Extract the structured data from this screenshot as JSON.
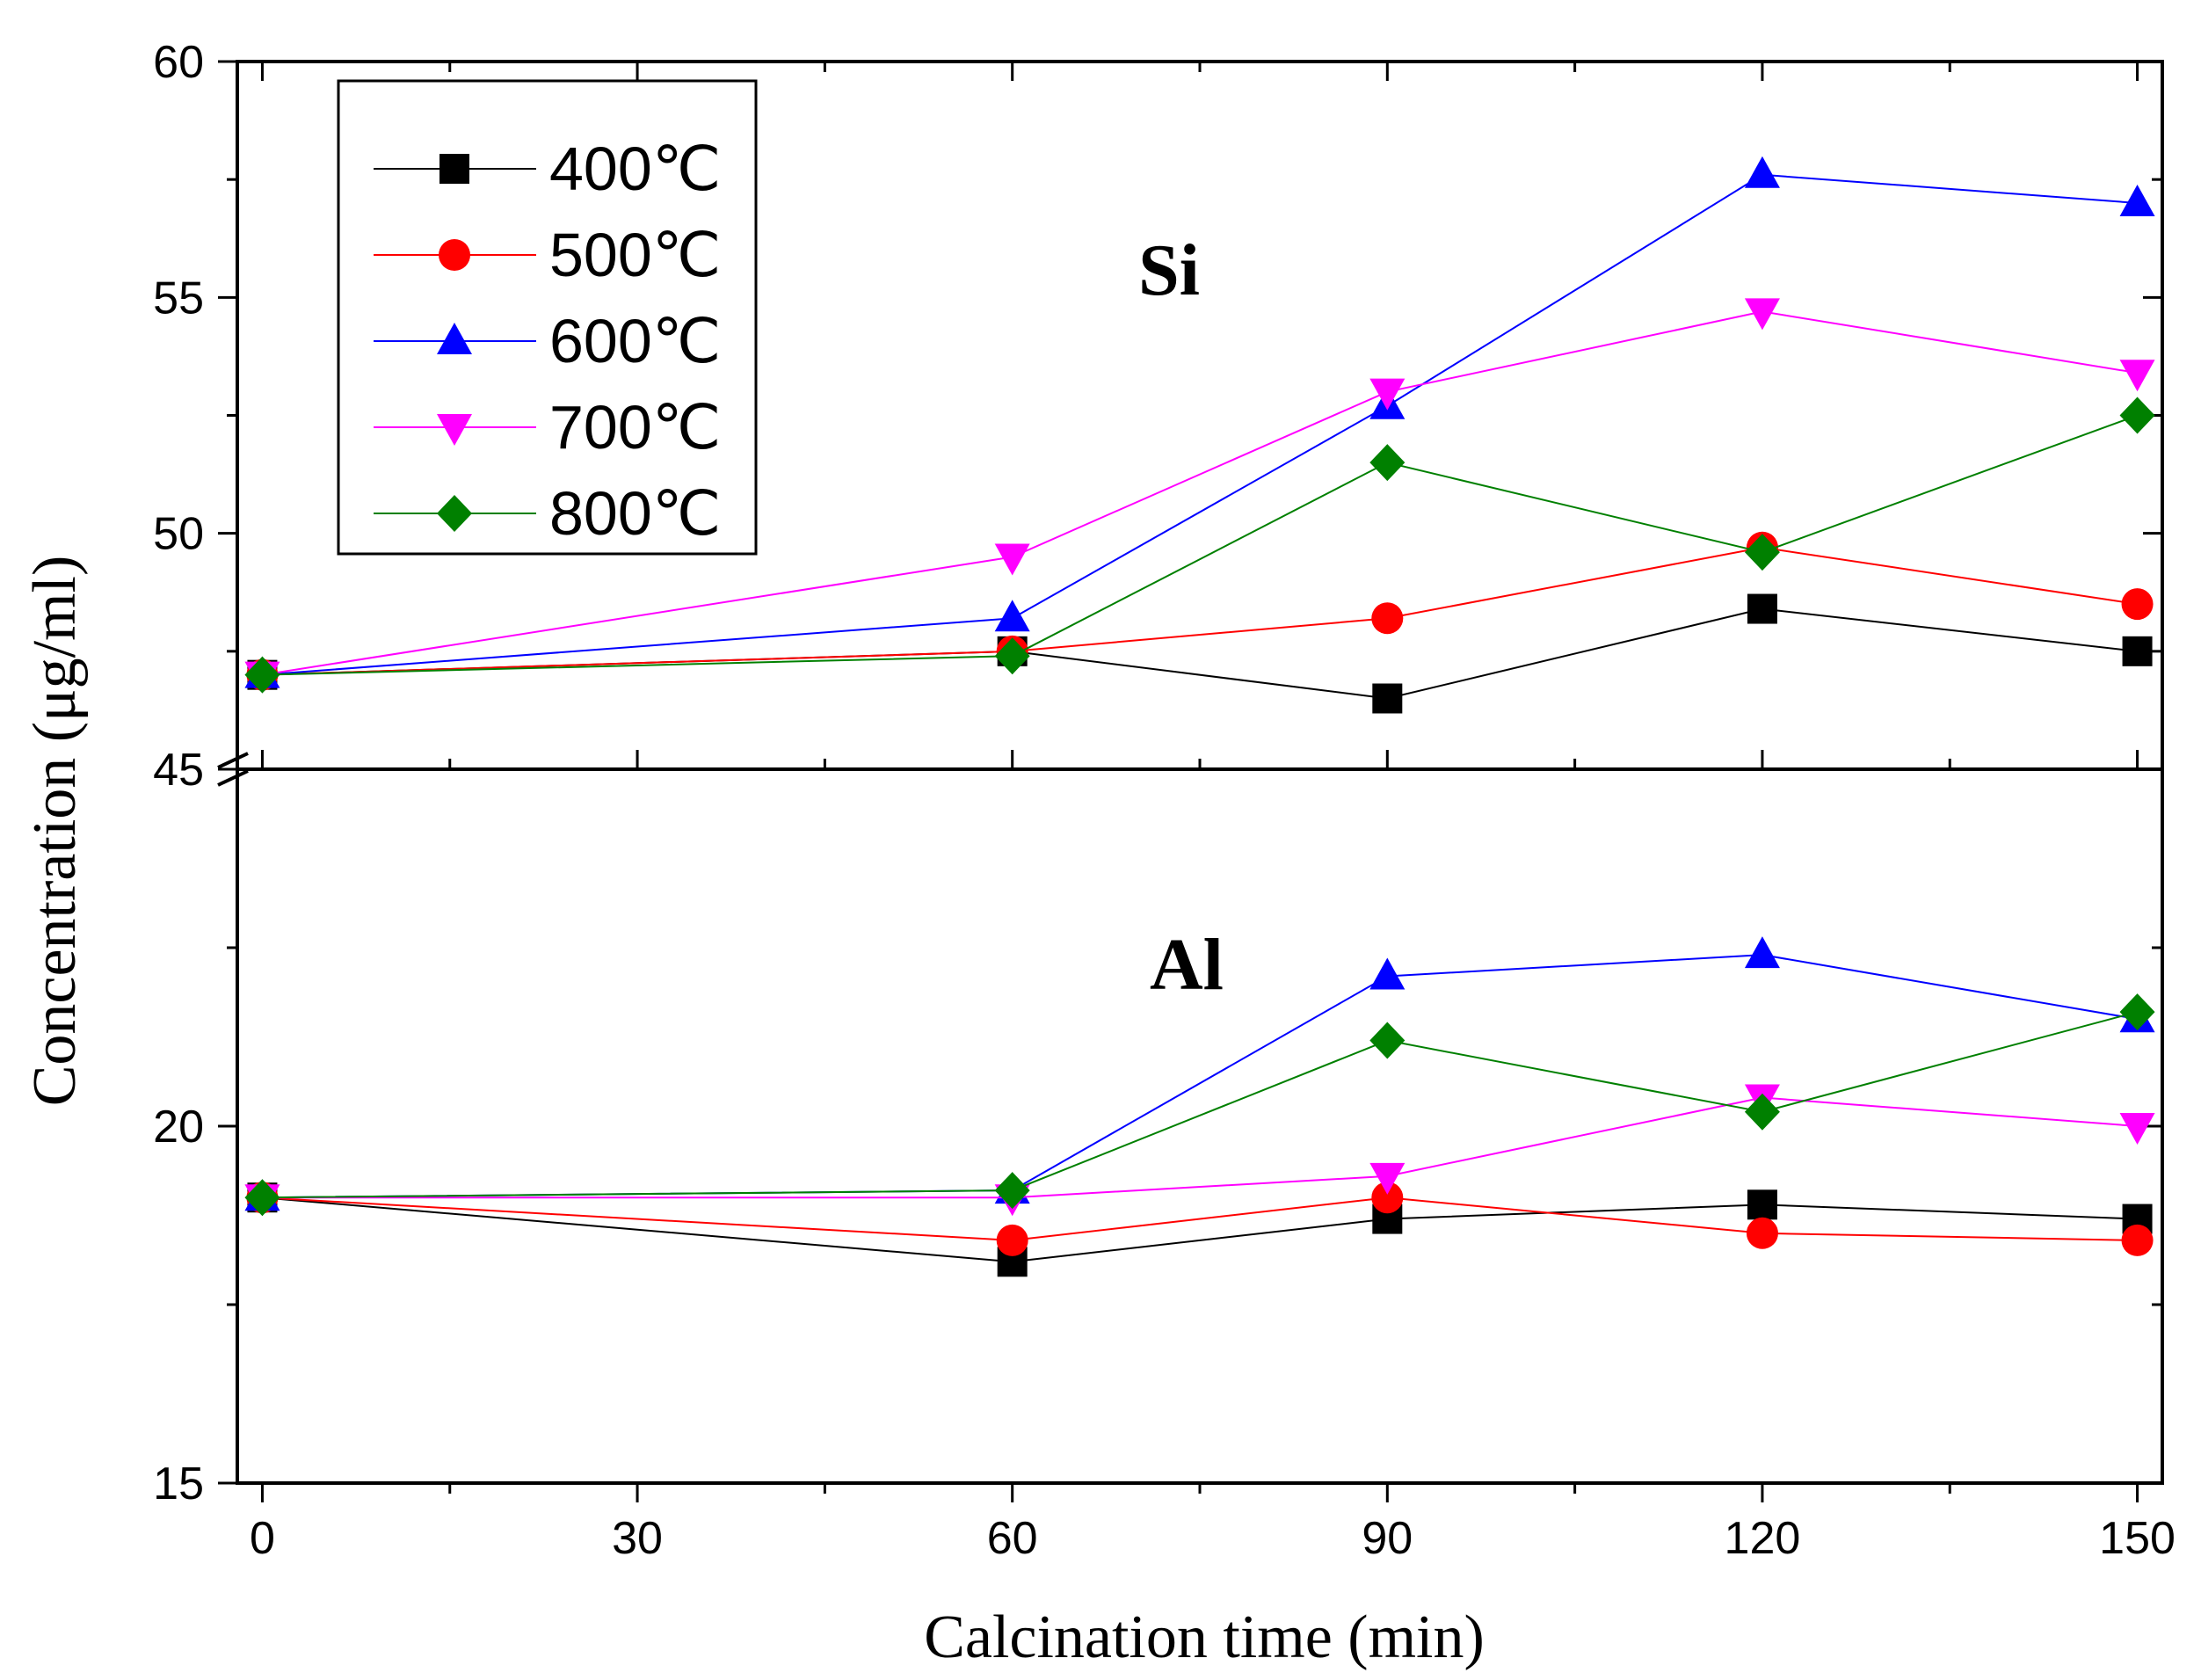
{
  "chart_data": {
    "type": "line",
    "xlabel": "Calcination time (min)",
    "ylabel": "Concentration (μg/ml)",
    "x": [
      0,
      60,
      90,
      120,
      150
    ],
    "xlim": [
      -2,
      152
    ],
    "xticks": [
      0,
      30,
      60,
      90,
      120,
      150
    ],
    "xticks_labeled": [
      "0",
      "30",
      "60",
      "90",
      "120",
      "150"
    ],
    "panels": [
      {
        "name": "upper",
        "label": "Si",
        "ylim": [
          45,
          60
        ],
        "yticks": [
          45,
          50,
          55,
          60
        ],
        "series": [
          {
            "name": "400℃",
            "values": [
              47.0,
              47.5,
              46.5,
              48.4,
              47.5
            ]
          },
          {
            "name": "500℃",
            "values": [
              47.0,
              47.5,
              48.2,
              49.7,
              48.5
            ]
          },
          {
            "name": "600℃",
            "values": [
              47.0,
              48.2,
              52.7,
              57.6,
              57.0
            ]
          },
          {
            "name": "700℃",
            "values": [
              47.0,
              49.5,
              53.0,
              54.7,
              53.4
            ]
          },
          {
            "name": "800℃",
            "values": [
              47.0,
              47.4,
              51.5,
              49.6,
              52.5
            ]
          }
        ]
      },
      {
        "name": "lower",
        "label": "Al",
        "ylim": [
          15,
          25
        ],
        "yticks": [
          15,
          20
        ],
        "series": [
          {
            "name": "400℃",
            "values": [
              19.0,
              18.1,
              18.7,
              18.9,
              18.7
            ]
          },
          {
            "name": "500℃",
            "values": [
              19.0,
              18.4,
              19.0,
              18.5,
              18.4
            ]
          },
          {
            "name": "600℃",
            "values": [
              19.0,
              19.1,
              22.1,
              22.4,
              21.5
            ]
          },
          {
            "name": "700℃",
            "values": [
              19.0,
              19.0,
              19.3,
              20.4,
              20.0
            ]
          },
          {
            "name": "800℃",
            "values": [
              19.0,
              19.1,
              21.2,
              20.2,
              21.6
            ]
          }
        ]
      }
    ],
    "legend": {
      "position": "top-left",
      "entries": [
        {
          "name": "400℃",
          "color": "#000000",
          "marker": "square"
        },
        {
          "name": "500℃",
          "color": "#ff0000",
          "marker": "circle"
        },
        {
          "name": "600℃",
          "color": "#0000ff",
          "marker": "triangle-up"
        },
        {
          "name": "700℃",
          "color": "#ff00ff",
          "marker": "triangle-down"
        },
        {
          "name": "800℃",
          "color": "#008000",
          "marker": "diamond"
        }
      ]
    }
  }
}
